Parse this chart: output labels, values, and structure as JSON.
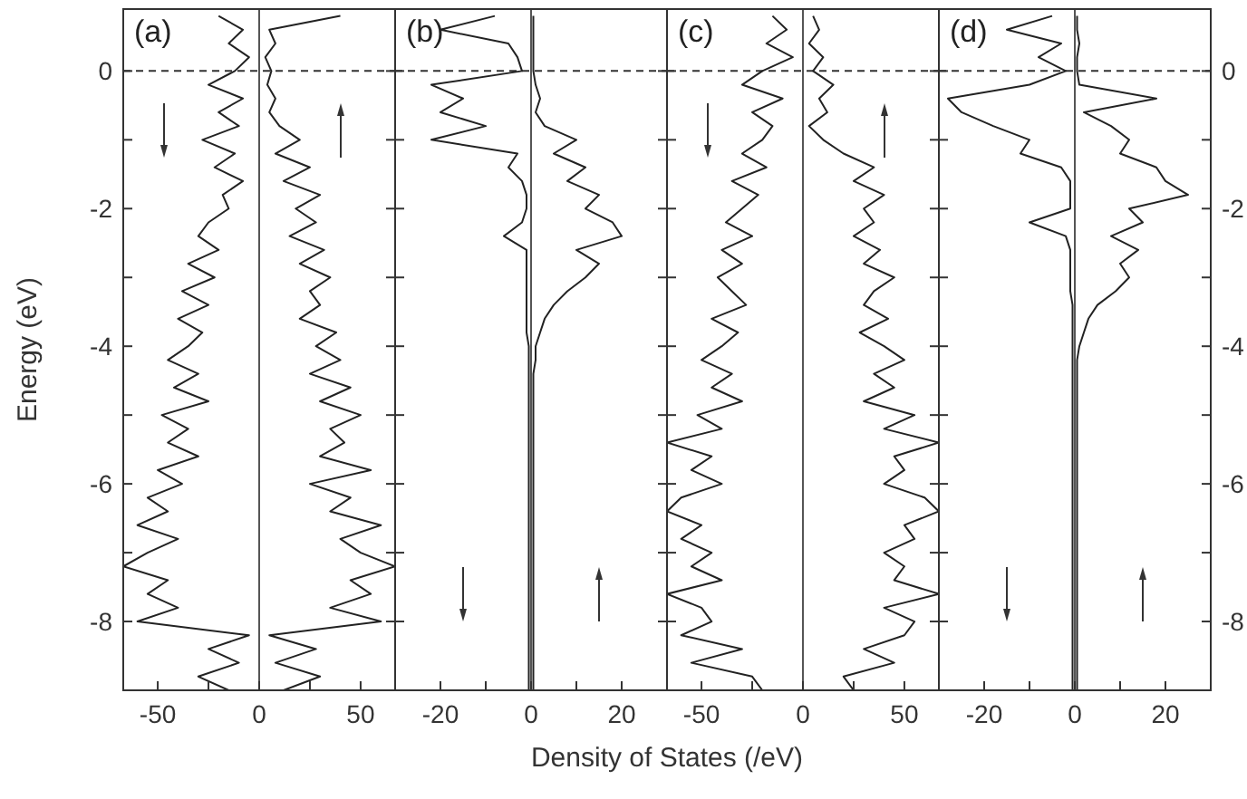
{
  "chart_data": [
    {
      "type": "line",
      "xlabel": "Density of States (/eV)",
      "ylabel": "Energy (eV)",
      "annotations": [
        "(a)"
      ],
      "xlim": [
        -67,
        67
      ],
      "xticks": [
        -50,
        {
          "value": -25,
          "label": null
        },
        0,
        {
          "value": 25,
          "label": null
        },
        50
      ],
      "ylim": [
        -9,
        0.9
      ],
      "yticks": [
        0,
        {
          "value": -1,
          "label": null
        },
        -2,
        {
          "value": -3,
          "label": null
        },
        -4,
        {
          "value": -5,
          "label": null
        },
        -6,
        {
          "value": -7,
          "label": null
        },
        -8
      ],
      "ref_lines": [
        {
          "axis": "y",
          "value": 0,
          "line_style": "dashed",
          "color": "#333333"
        },
        {
          "axis": "x",
          "value": 0,
          "color": "#555555"
        }
      ],
      "series": [
        {
          "color": "#222222",
          "x": [
            -20,
            -8,
            -15,
            -5,
            -12,
            -25,
            -8,
            -20,
            -10,
            -28,
            -12,
            -22,
            -8,
            -18,
            -15,
            -25,
            -30,
            -20,
            -35,
            -22,
            -38,
            -25,
            -40,
            -28,
            -35,
            -45,
            -30,
            -42,
            -25,
            -48,
            -35,
            -45,
            -30,
            -50,
            -38,
            -55,
            -45,
            -60,
            -40,
            -55,
            -67,
            -45,
            -55,
            -40,
            -60,
            -5,
            -25,
            -10,
            -30,
            -15
          ],
          "values": [
            0.8,
            0.6,
            0.4,
            0.2,
            0,
            -0.2,
            -0.4,
            -0.6,
            -0.8,
            -1,
            -1.2,
            -1.4,
            -1.6,
            -1.8,
            -2,
            -2.2,
            -2.4,
            -2.6,
            -2.8,
            -3,
            -3.2,
            -3.4,
            -3.6,
            -3.8,
            -4,
            -4.2,
            -4.4,
            -4.6,
            -4.8,
            -5,
            -5.2,
            -5.4,
            -5.6,
            -5.8,
            -6,
            -6.2,
            -6.4,
            -6.6,
            -6.8,
            -7,
            -7.2,
            -7.4,
            -7.6,
            -7.8,
            -8,
            -8.2,
            -8.4,
            -8.6,
            -8.8,
            -9
          ]
        },
        {
          "color": "#222222",
          "x": [
            40,
            5,
            8,
            3,
            6,
            4,
            8,
            5,
            10,
            20,
            8,
            25,
            12,
            30,
            18,
            28,
            15,
            32,
            20,
            35,
            25,
            30,
            20,
            38,
            28,
            40,
            25,
            45,
            30,
            50,
            35,
            42,
            30,
            55,
            25,
            45,
            35,
            60,
            40,
            50,
            67,
            45,
            55,
            35,
            60,
            5,
            28,
            8,
            30,
            12
          ],
          "values": [
            0.8,
            0.6,
            0.4,
            0.2,
            0,
            -0.2,
            -0.4,
            -0.6,
            -0.8,
            -1,
            -1.2,
            -1.4,
            -1.6,
            -1.8,
            -2,
            -2.2,
            -2.4,
            -2.6,
            -2.8,
            -3,
            -3.2,
            -3.4,
            -3.6,
            -3.8,
            -4,
            -4.2,
            -4.4,
            -4.6,
            -4.8,
            -5,
            -5.2,
            -5.4,
            -5.6,
            -5.8,
            -6,
            -6.2,
            -6.4,
            -6.6,
            -6.8,
            -7,
            -7.2,
            -7.4,
            -7.6,
            -7.8,
            -8,
            -8.2,
            -8.4,
            -8.6,
            -8.8,
            -9
          ]
        }
      ]
    },
    {
      "type": "line",
      "annotations": [
        "(b)"
      ],
      "tick_labels": "x",
      "xlim": [
        -30,
        30
      ],
      "xticks": [
        -20,
        {
          "value": -10,
          "label": null
        },
        0,
        {
          "value": 10,
          "label": null
        },
        20
      ],
      "ylim": [
        -9,
        0.9
      ],
      "yticks": [
        0,
        {
          "value": -1,
          "label": null
        },
        -2,
        {
          "value": -3,
          "label": null
        },
        -4,
        {
          "value": -5,
          "label": null
        },
        -6,
        {
          "value": -7,
          "label": null
        },
        -8
      ],
      "ref_lines": [
        {
          "axis": "y",
          "value": 0,
          "line_style": "dashed",
          "color": "#333333"
        },
        {
          "axis": "x",
          "value": 0,
          "color": "#555555"
        }
      ],
      "series": [
        {
          "color": "#222222",
          "x": [
            -8,
            -20,
            -5,
            -3,
            -2,
            -22,
            -15,
            -20,
            -10,
            -22,
            -3,
            -5,
            -2,
            -1,
            -1,
            -2,
            -6,
            -1,
            -1,
            -1,
            -1,
            -1,
            -1,
            -1,
            -0.5,
            -0.5,
            -0.5,
            -0.5,
            -0.5,
            -0.5,
            -0.5,
            -0.5,
            -0.5,
            -0.5,
            -0.5,
            -0.5,
            -0.5,
            -0.5,
            -0.5,
            -0.5,
            -0.5,
            -0.5,
            -0.5,
            -0.5,
            -0.5,
            -0.5,
            -0.5,
            -0.5,
            -0.5,
            -0.5
          ],
          "values": [
            0.8,
            0.6,
            0.4,
            0.2,
            0,
            -0.2,
            -0.4,
            -0.6,
            -0.8,
            -1,
            -1.2,
            -1.4,
            -1.6,
            -1.8,
            -2,
            -2.2,
            -2.4,
            -2.6,
            -2.8,
            -3,
            -3.2,
            -3.4,
            -3.6,
            -3.8,
            -4,
            -4.2,
            -4.4,
            -4.6,
            -4.8,
            -5,
            -5.2,
            -5.4,
            -5.6,
            -5.8,
            -6,
            -6.2,
            -6.4,
            -6.6,
            -6.8,
            -7,
            -7.2,
            -7.4,
            -7.6,
            -7.8,
            -8,
            -8.2,
            -8.4,
            -8.6,
            -8.8,
            -9
          ]
        },
        {
          "color": "#222222",
          "x": [
            0.5,
            0.5,
            0.5,
            0.5,
            0.5,
            1,
            2,
            1,
            3,
            10,
            5,
            12,
            8,
            15,
            12,
            18,
            20,
            10,
            15,
            12,
            8,
            5,
            3,
            2,
            1,
            1,
            0.5,
            0.5,
            0.5,
            0.5,
            0.5,
            0.5,
            0.5,
            0.5,
            0.5,
            0.5,
            0.5,
            0.5,
            0.5,
            0.5,
            0.5,
            0.5,
            0.5,
            0.5,
            0.5,
            0.5,
            0.5,
            0.5,
            0.5,
            0.5
          ],
          "values": [
            0.8,
            0.6,
            0.4,
            0.2,
            0,
            -0.2,
            -0.4,
            -0.6,
            -0.8,
            -1,
            -1.2,
            -1.4,
            -1.6,
            -1.8,
            -2,
            -2.2,
            -2.4,
            -2.6,
            -2.8,
            -3,
            -3.2,
            -3.4,
            -3.6,
            -3.8,
            -4,
            -4.2,
            -4.4,
            -4.6,
            -4.8,
            -5,
            -5.2,
            -5.4,
            -5.6,
            -5.8,
            -6,
            -6.2,
            -6.4,
            -6.6,
            -6.8,
            -7,
            -7.2,
            -7.4,
            -7.6,
            -7.8,
            -8,
            -8.2,
            -8.4,
            -8.6,
            -8.8,
            -9
          ]
        }
      ]
    },
    {
      "type": "line",
      "annotations": [
        "(c)"
      ],
      "tick_labels": "x",
      "xlim": [
        -67,
        67
      ],
      "xticks": [
        -50,
        {
          "value": -25,
          "label": null
        },
        0,
        {
          "value": 25,
          "label": null
        },
        50
      ],
      "ylim": [
        -9,
        0.9
      ],
      "yticks": [
        0,
        {
          "value": -1,
          "label": null
        },
        -2,
        {
          "value": -3,
          "label": null
        },
        -4,
        {
          "value": -5,
          "label": null
        },
        -6,
        {
          "value": -7,
          "label": null
        },
        -8
      ],
      "ref_lines": [
        {
          "axis": "y",
          "value": 0,
          "line_style": "dashed",
          "color": "#333333"
        },
        {
          "axis": "x",
          "value": 0,
          "color": "#555555"
        }
      ],
      "series": [
        {
          "color": "#222222",
          "x": [
            -15,
            -8,
            -18,
            -5,
            -20,
            -30,
            -10,
            -25,
            -15,
            -20,
            -30,
            -18,
            -35,
            -22,
            -30,
            -38,
            -25,
            -40,
            -30,
            -42,
            -35,
            -28,
            -45,
            -32,
            -40,
            -50,
            -35,
            -45,
            -30,
            -52,
            -40,
            -67,
            -45,
            -55,
            -40,
            -60,
            -67,
            -50,
            -60,
            -45,
            -55,
            -40,
            -67,
            -50,
            -45,
            -60,
            -30,
            -55,
            -25,
            -20
          ],
          "values": [
            0.8,
            0.6,
            0.4,
            0.2,
            0,
            -0.2,
            -0.4,
            -0.6,
            -0.8,
            -1,
            -1.2,
            -1.4,
            -1.6,
            -1.8,
            -2,
            -2.2,
            -2.4,
            -2.6,
            -2.8,
            -3,
            -3.2,
            -3.4,
            -3.6,
            -3.8,
            -4,
            -4.2,
            -4.4,
            -4.6,
            -4.8,
            -5,
            -5.2,
            -5.4,
            -5.6,
            -5.8,
            -6,
            -6.2,
            -6.4,
            -6.6,
            -6.8,
            -7,
            -7.2,
            -7.4,
            -7.6,
            -7.8,
            -8,
            -8.2,
            -8.4,
            -8.6,
            -8.8,
            -9
          ]
        },
        {
          "color": "#222222",
          "x": [
            5,
            8,
            3,
            10,
            5,
            15,
            8,
            12,
            3,
            10,
            20,
            35,
            25,
            40,
            30,
            35,
            25,
            38,
            30,
            45,
            35,
            30,
            42,
            28,
            40,
            50,
            35,
            45,
            30,
            55,
            40,
            67,
            45,
            50,
            40,
            60,
            67,
            50,
            55,
            40,
            50,
            45,
            67,
            40,
            55,
            50,
            30,
            45,
            20,
            25
          ],
          "values": [
            0.8,
            0.6,
            0.4,
            0.2,
            0,
            -0.2,
            -0.4,
            -0.6,
            -0.8,
            -1,
            -1.2,
            -1.4,
            -1.6,
            -1.8,
            -2,
            -2.2,
            -2.4,
            -2.6,
            -2.8,
            -3,
            -3.2,
            -3.4,
            -3.6,
            -3.8,
            -4,
            -4.2,
            -4.4,
            -4.6,
            -4.8,
            -5,
            -5.2,
            -5.4,
            -5.6,
            -5.8,
            -6,
            -6.2,
            -6.4,
            -6.6,
            -6.8,
            -7,
            -7.2,
            -7.4,
            -7.6,
            -7.8,
            -8,
            -8.2,
            -8.4,
            -8.6,
            -8.8,
            -9
          ]
        }
      ]
    },
    {
      "type": "line",
      "annotations": [
        "(d)"
      ],
      "xlim": [
        -30,
        30
      ],
      "xticks": [
        -20,
        {
          "value": -10,
          "label": null
        },
        0,
        {
          "value": 10,
          "label": null
        },
        20
      ],
      "y2lim": [
        -9,
        0.9
      ],
      "y2ticks": [
        0,
        {
          "value": -1,
          "label": null
        },
        -2,
        {
          "value": -3,
          "label": null
        },
        -4,
        {
          "value": -5,
          "label": null
        },
        -6,
        {
          "value": -7,
          "label": null
        },
        -8
      ],
      "ref_lines": [
        {
          "axis": "y2",
          "value": 0,
          "line_style": "dashed",
          "color": "#333333"
        },
        {
          "axis": "x",
          "value": 0,
          "color": "#555555"
        }
      ],
      "series": [
        {
          "axis": "y2",
          "color": "#222222",
          "x": [
            -5,
            -15,
            -3,
            -8,
            -2,
            -10,
            -28,
            -25,
            -18,
            -10,
            -12,
            -3,
            -1,
            -1,
            -1,
            -10,
            -2,
            -1,
            -1,
            -1,
            -1,
            -0.5,
            -0.5,
            -0.5,
            -0.5,
            -0.5,
            -0.5,
            -0.5,
            -0.5,
            -0.5,
            -0.5,
            -0.5,
            -0.5,
            -0.5,
            -0.5,
            -0.5,
            -0.5,
            -0.5,
            -0.5,
            -0.5,
            -0.5,
            -0.5,
            -0.5,
            -0.5,
            -0.5,
            -0.5,
            -0.5,
            -0.5,
            -0.5,
            -0.5
          ],
          "values": [
            0.8,
            0.6,
            0.4,
            0.2,
            0,
            -0.2,
            -0.4,
            -0.6,
            -0.8,
            -1,
            -1.2,
            -1.4,
            -1.6,
            -1.8,
            -2,
            -2.2,
            -2.4,
            -2.6,
            -2.8,
            -3,
            -3.2,
            -3.4,
            -3.6,
            -3.8,
            -4,
            -4.2,
            -4.4,
            -4.6,
            -4.8,
            -5,
            -5.2,
            -5.4,
            -5.6,
            -5.8,
            -6,
            -6.2,
            -6.4,
            -6.6,
            -6.8,
            -7,
            -7.2,
            -7.4,
            -7.6,
            -7.8,
            -8,
            -8.2,
            -8.4,
            -8.6,
            -8.8,
            -9
          ]
        },
        {
          "axis": "y2",
          "color": "#222222",
          "x": [
            0.5,
            0.5,
            1,
            0.5,
            0.5,
            1,
            18,
            2,
            8,
            12,
            10,
            18,
            20,
            25,
            12,
            15,
            8,
            14,
            10,
            12,
            9,
            5,
            3,
            2,
            1,
            0.5,
            0.5,
            0.5,
            0.5,
            0.5,
            0.5,
            0.5,
            0.5,
            0.5,
            0.5,
            0.5,
            0.5,
            0.5,
            0.5,
            0.5,
            0.5,
            0.5,
            0.5,
            0.5,
            0.5,
            0.5,
            0.5,
            0.5,
            0.5,
            0.5
          ],
          "values": [
            0.8,
            0.6,
            0.4,
            0.2,
            0,
            -0.2,
            -0.4,
            -0.6,
            -0.8,
            -1,
            -1.2,
            -1.4,
            -1.6,
            -1.8,
            -2,
            -2.2,
            -2.4,
            -2.6,
            -2.8,
            -3,
            -3.2,
            -3.4,
            -3.6,
            -3.8,
            -4,
            -4.2,
            -4.4,
            -4.6,
            -4.8,
            -5,
            -5.2,
            -5.4,
            -5.6,
            -5.8,
            -6,
            -6.2,
            -6.4,
            -6.6,
            -6.8,
            -7,
            -7.2,
            -7.4,
            -7.6,
            -7.8,
            -8,
            -8.2,
            -8.4,
            -8.6,
            -8.8,
            -9
          ]
        }
      ]
    }
  ]
}
